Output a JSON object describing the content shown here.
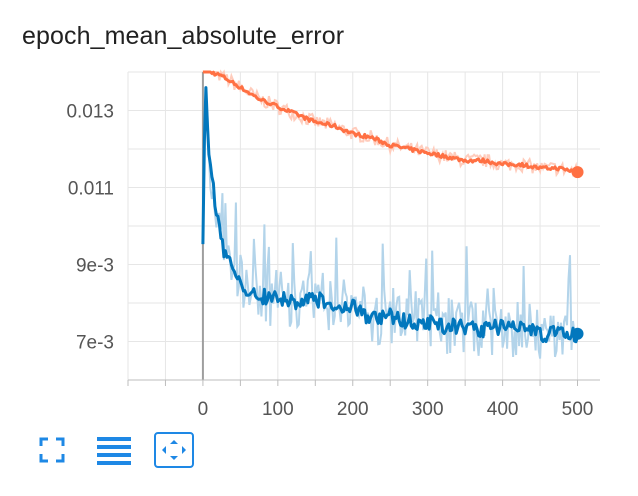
{
  "chart_data": {
    "type": "line",
    "title": "epoch_mean_absolute_error",
    "xlabel": "",
    "ylabel": "",
    "xlim": [
      -100,
      530
    ],
    "ylim": [
      0.006,
      0.014
    ],
    "x_ticks": [
      0,
      100,
      200,
      300,
      400,
      500
    ],
    "x_tick_labels": [
      "0",
      "100",
      "200",
      "300",
      "400",
      "500"
    ],
    "y_ticks": [
      0.007,
      0.009,
      0.011,
      0.013
    ],
    "y_tick_labels": [
      "7e-3",
      "9e-3",
      "0.011",
      "0.013"
    ],
    "grid": true,
    "legend": "none",
    "series": [
      {
        "color": "#ff7043",
        "smoothed_points": [
          [
            0,
            0.0145
          ],
          [
            10,
            0.014
          ],
          [
            25,
            0.0139
          ],
          [
            50,
            0.0136
          ],
          [
            75,
            0.0133
          ],
          [
            100,
            0.0131
          ],
          [
            125,
            0.0129
          ],
          [
            150,
            0.0127
          ],
          [
            175,
            0.0126
          ],
          [
            200,
            0.0124
          ],
          [
            225,
            0.0123
          ],
          [
            250,
            0.0121
          ],
          [
            275,
            0.012
          ],
          [
            300,
            0.0119
          ],
          [
            325,
            0.0118
          ],
          [
            350,
            0.0117
          ],
          [
            375,
            0.0117
          ],
          [
            400,
            0.0116
          ],
          [
            425,
            0.0116
          ],
          [
            450,
            0.0115
          ],
          [
            475,
            0.0115
          ],
          [
            500,
            0.0114
          ]
        ]
      },
      {
        "color": "#0277bd",
        "smoothed_points": [
          [
            0,
            0.0095
          ],
          [
            3,
            0.0138
          ],
          [
            8,
            0.012
          ],
          [
            15,
            0.0108
          ],
          [
            25,
            0.0095
          ],
          [
            40,
            0.0088
          ],
          [
            55,
            0.0083
          ],
          [
            75,
            0.0082
          ],
          [
            100,
            0.0081
          ],
          [
            125,
            0.008
          ],
          [
            150,
            0.0081
          ],
          [
            175,
            0.008
          ],
          [
            200,
            0.0079
          ],
          [
            225,
            0.0076
          ],
          [
            250,
            0.0077
          ],
          [
            275,
            0.0075
          ],
          [
            300,
            0.0075
          ],
          [
            325,
            0.0074
          ],
          [
            350,
            0.0074
          ],
          [
            375,
            0.0073
          ],
          [
            400,
            0.0074
          ],
          [
            425,
            0.0073
          ],
          [
            450,
            0.0072
          ],
          [
            475,
            0.0072
          ],
          [
            500,
            0.0072
          ]
        ]
      }
    ]
  },
  "colors": {
    "series_orange": "#ff7043",
    "series_orange_raw": "#ffccbc",
    "series_blue": "#0277bd",
    "series_blue_raw": "#b3d4ea",
    "grid": "#e6e6e6",
    "zero_line": "#9e9e9e",
    "toolbar_icon": "#1e88e5"
  },
  "toolbar": {
    "icons": [
      "fullscreen-icon",
      "data-table-icon",
      "fit-domain-icon"
    ]
  }
}
